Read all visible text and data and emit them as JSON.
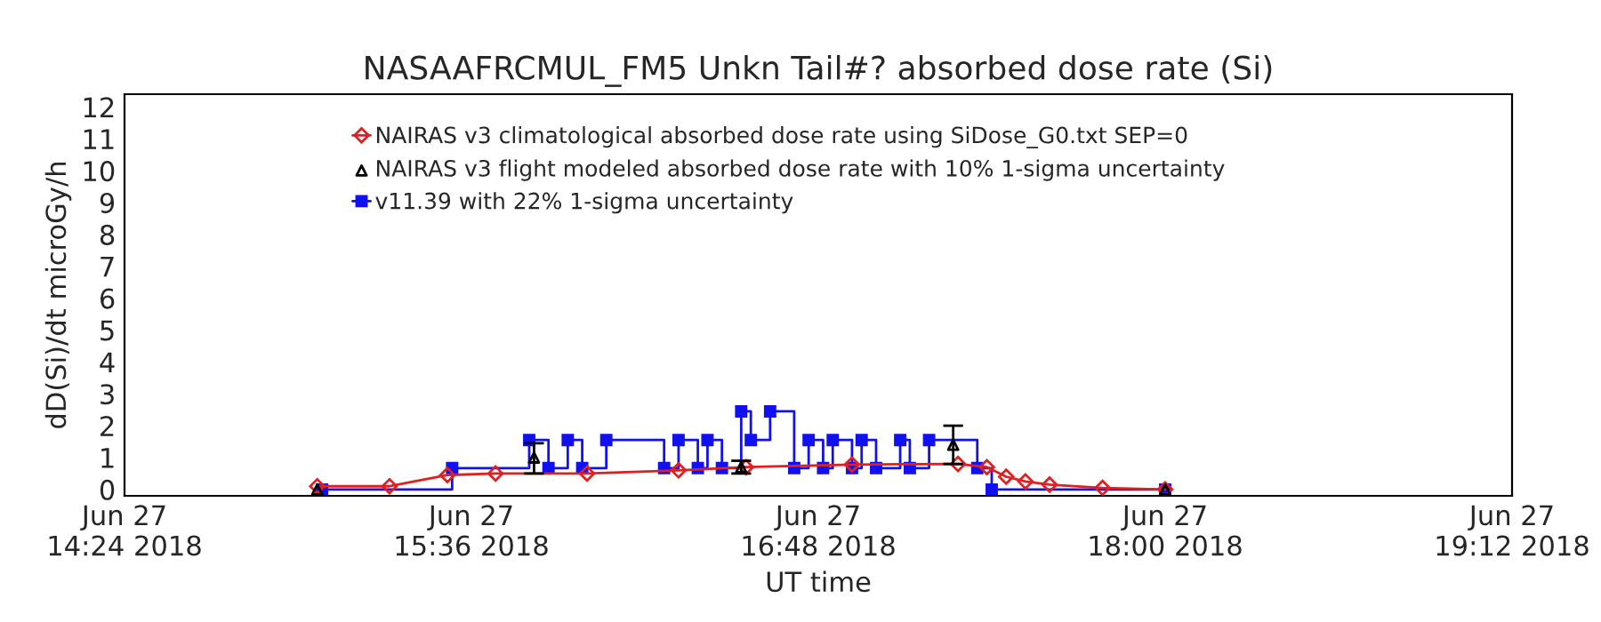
{
  "chart_data": {
    "type": "line",
    "title": "NASAAFRCMUL_FM5 Unkn Tail#? absorbed dose rate (Si)",
    "xlabel": "UT time",
    "ylabel": "dD(Si)/dt microGy/h",
    "xlim": [
      "2018-06-27T14:24",
      "2018-06-27T19:12"
    ],
    "xticks": [
      {
        "value": "2018-06-27T14:24",
        "label": "Jun 27\n14:24 2018"
      },
      {
        "value": "2018-06-27T15:36",
        "label": "Jun 27\n15:36 2018"
      },
      {
        "value": "2018-06-27T16:48",
        "label": "Jun 27\n16:48 2018"
      },
      {
        "value": "2018-06-27T18:00",
        "label": "Jun 27\n18:00 2018"
      },
      {
        "value": "2018-06-27T19:12",
        "label": "Jun 27\n19:12 2018"
      }
    ],
    "ylim": [
      -0.2,
      12.4
    ],
    "yticks": [
      0,
      1,
      2,
      3,
      4,
      5,
      6,
      7,
      8,
      9,
      10,
      11,
      12
    ],
    "legend": "top left",
    "series": [
      {
        "name": "NAIRAS v3 climatological absorbed dose rate using SiDose_G0.txt SEP=0",
        "type": "line",
        "marker": "diamond",
        "color": "#e02020",
        "x": [
          "2018-06-27T15:04",
          "2018-06-27T15:19",
          "2018-06-27T15:31",
          "2018-06-27T15:41",
          "2018-06-27T16:00",
          "2018-06-27T16:19",
          "2018-06-27T16:33",
          "2018-06-27T16:55",
          "2018-06-27T17:17",
          "2018-06-27T17:23",
          "2018-06-27T17:27",
          "2018-06-27T17:31",
          "2018-06-27T17:36",
          "2018-06-27T17:47",
          "2018-06-27T18:00"
        ],
        "values": [
          0.1,
          0.1,
          0.45,
          0.5,
          0.5,
          0.6,
          0.7,
          0.78,
          0.8,
          0.7,
          0.4,
          0.25,
          0.15,
          0.05,
          0.0
        ]
      },
      {
        "name": "NAIRAS v3 flight modeled absorbed dose rate with 10% 1-sigma uncertainty",
        "type": "scatter",
        "marker": "triangle",
        "color": "#000000",
        "x": [
          "2018-06-27T15:04",
          "2018-06-27T15:49",
          "2018-06-27T16:32",
          "2018-06-27T17:16",
          "2018-06-27T18:00"
        ],
        "values": [
          0,
          1.0,
          0.7,
          1.4,
          0
        ],
        "errors": [
          null,
          [
            0.5,
            1.45
          ],
          [
            0.5,
            0.9
          ],
          [
            0.8,
            2.0
          ],
          null
        ]
      },
      {
        "name": "v11.39 with 22% 1-sigma uncertainty",
        "type": "step",
        "marker": "square",
        "color": "#1010f0",
        "x": [
          "2018-06-27T15:05",
          "2018-06-27T15:32",
          "2018-06-27T15:48",
          "2018-06-27T15:52",
          "2018-06-27T15:56",
          "2018-06-27T15:59",
          "2018-06-27T16:04",
          "2018-06-27T16:16",
          "2018-06-27T16:19",
          "2018-06-27T16:23",
          "2018-06-27T16:25",
          "2018-06-27T16:28",
          "2018-06-27T16:32",
          "2018-06-27T16:34",
          "2018-06-27T16:38",
          "2018-06-27T16:43",
          "2018-06-27T16:46",
          "2018-06-27T16:49",
          "2018-06-27T16:51",
          "2018-06-27T16:55",
          "2018-06-27T16:57",
          "2018-06-27T17:00",
          "2018-06-27T17:05",
          "2018-06-27T17:07",
          "2018-06-27T17:11",
          "2018-06-27T17:21",
          "2018-06-27T17:24",
          "2018-06-27T18:00"
        ],
        "values": [
          0,
          0.67,
          1.55,
          0.67,
          1.55,
          0.67,
          1.55,
          0.67,
          1.55,
          0.67,
          1.55,
          0.67,
          2.45,
          1.55,
          2.45,
          0.67,
          1.55,
          0.67,
          1.55,
          0.67,
          1.55,
          0.67,
          1.55,
          0.67,
          1.55,
          0.67,
          0,
          0
        ]
      }
    ]
  }
}
